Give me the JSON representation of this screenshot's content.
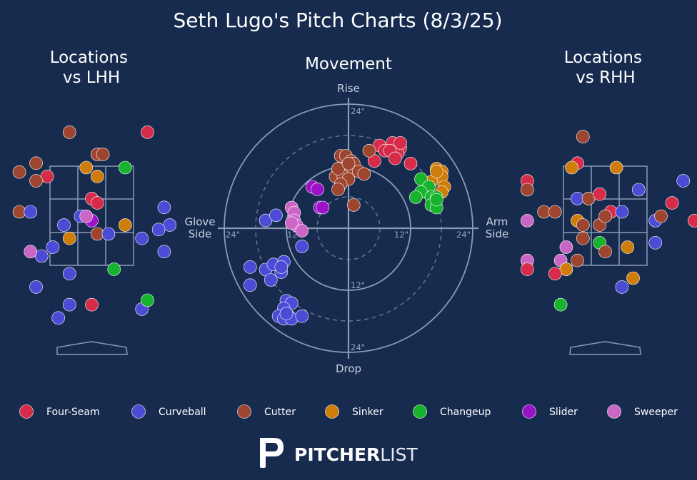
{
  "title": "Seth Lugo's Pitch Charts (8/3/25)",
  "colors": {
    "background": "#162b4e",
    "Four-Seam": "#d62c4a",
    "Curveball": "#4b4bd6",
    "Cutter": "#9e4530",
    "Sinker": "#cf7d0a",
    "Changeup": "#17b32c",
    "Slider": "#9b12c7",
    "Sweeper": "#cc66c6"
  },
  "chart_data": [
    {
      "type": "scatter",
      "title": "Locations\nvs LHH",
      "grid": "strike-zone-3x3",
      "points": [
        {
          "pitch": "Four-Seam",
          "x": 1.0,
          "y": 4.3
        },
        {
          "pitch": "Four-Seam",
          "x": -0.8,
          "y": 3.3
        },
        {
          "pitch": "Four-Seam",
          "x": 0.0,
          "y": 2.8
        },
        {
          "pitch": "Four-Seam",
          "x": 0.1,
          "y": 2.7
        },
        {
          "pitch": "Four-Seam",
          "x": 0.0,
          "y": 0.4
        },
        {
          "pitch": "Cutter",
          "x": -0.4,
          "y": 4.3
        },
        {
          "pitch": "Cutter",
          "x": 0.1,
          "y": 3.8
        },
        {
          "pitch": "Cutter",
          "x": 0.2,
          "y": 3.8
        },
        {
          "pitch": "Cutter",
          "x": -1.0,
          "y": 3.6
        },
        {
          "pitch": "Cutter",
          "x": -1.3,
          "y": 3.4
        },
        {
          "pitch": "Cutter",
          "x": -1.0,
          "y": 3.2
        },
        {
          "pitch": "Cutter",
          "x": -1.3,
          "y": 2.5
        },
        {
          "pitch": "Cutter",
          "x": 0.1,
          "y": 2.0
        },
        {
          "pitch": "Curveball",
          "x": -1.1,
          "y": 2.5
        },
        {
          "pitch": "Curveball",
          "x": 1.3,
          "y": 2.6
        },
        {
          "pitch": "Curveball",
          "x": -0.5,
          "y": 2.2
        },
        {
          "pitch": "Curveball",
          "x": -0.2,
          "y": 2.4
        },
        {
          "pitch": "Curveball",
          "x": 1.4,
          "y": 2.2
        },
        {
          "pitch": "Curveball",
          "x": 1.2,
          "y": 2.1
        },
        {
          "pitch": "Curveball",
          "x": 0.3,
          "y": 2.0
        },
        {
          "pitch": "Curveball",
          "x": 0.9,
          "y": 1.9
        },
        {
          "pitch": "Curveball",
          "x": -0.7,
          "y": 1.7
        },
        {
          "pitch": "Curveball",
          "x": -0.9,
          "y": 1.5
        },
        {
          "pitch": "Curveball",
          "x": 1.3,
          "y": 1.6
        },
        {
          "pitch": "Curveball",
          "x": -0.4,
          "y": 1.1
        },
        {
          "pitch": "Curveball",
          "x": -1.0,
          "y": 0.8
        },
        {
          "pitch": "Curveball",
          "x": -0.4,
          "y": 0.4
        },
        {
          "pitch": "Curveball",
          "x": 0.9,
          "y": 0.3
        },
        {
          "pitch": "Curveball",
          "x": -0.6,
          "y": 0.1
        },
        {
          "pitch": "Sinker",
          "x": -0.1,
          "y": 3.5
        },
        {
          "pitch": "Sinker",
          "x": 0.1,
          "y": 3.3
        },
        {
          "pitch": "Sinker",
          "x": 0.6,
          "y": 2.2
        },
        {
          "pitch": "Sinker",
          "x": -0.4,
          "y": 1.9
        },
        {
          "pitch": "Changeup",
          "x": 0.6,
          "y": 3.5
        },
        {
          "pitch": "Changeup",
          "x": 0.4,
          "y": 1.2
        },
        {
          "pitch": "Changeup",
          "x": 1.0,
          "y": 0.5
        },
        {
          "pitch": "Slider",
          "x": 0.0,
          "y": 2.3
        },
        {
          "pitch": "Sweeper",
          "x": -0.1,
          "y": 2.4
        },
        {
          "pitch": "Sweeper",
          "x": -1.1,
          "y": 1.6
        }
      ]
    },
    {
      "type": "scatter",
      "title": "Movement",
      "polar": true,
      "xlim": [
        -24,
        24
      ],
      "ylim": [
        -24,
        24
      ],
      "rings": [
        "12\"",
        "24\""
      ],
      "axis_labels": {
        "top": "Rise",
        "bottom": "Drop",
        "left": "Glove\nSide",
        "right": "Arm\nSide"
      },
      "tick_labels": {
        "left": "24\"",
        "left_inner": "12\"",
        "right_inner": "12\"",
        "right": "24\"",
        "top": "24\"",
        "bottom_inner": "12\"",
        "bottom": "24\""
      },
      "points": [
        {
          "pitch": "Four-Seam",
          "x": 6.0,
          "y": 16.0
        },
        {
          "pitch": "Four-Seam",
          "x": 8.5,
          "y": 16.5
        },
        {
          "pitch": "Four-Seam",
          "x": 10.0,
          "y": 15.5
        },
        {
          "pitch": "Four-Seam",
          "x": 9.5,
          "y": 14.5
        },
        {
          "pitch": "Four-Seam",
          "x": 7.0,
          "y": 15.0
        },
        {
          "pitch": "Four-Seam",
          "x": 8.0,
          "y": 15.0
        },
        {
          "pitch": "Four-Seam",
          "x": 9.0,
          "y": 13.5
        },
        {
          "pitch": "Four-Seam",
          "x": 5.0,
          "y": 13.0
        },
        {
          "pitch": "Four-Seam",
          "x": 12.0,
          "y": 12.5
        },
        {
          "pitch": "Four-Seam",
          "x": 10.0,
          "y": 16.5
        },
        {
          "pitch": "Cutter",
          "x": -1.5,
          "y": 14.0
        },
        {
          "pitch": "Cutter",
          "x": -0.5,
          "y": 14.0
        },
        {
          "pitch": "Cutter",
          "x": 0.5,
          "y": 13.0
        },
        {
          "pitch": "Cutter",
          "x": 1.0,
          "y": 12.5
        },
        {
          "pitch": "Cutter",
          "x": -2.0,
          "y": 11.0
        },
        {
          "pitch": "Cutter",
          "x": -1.0,
          "y": 11.5
        },
        {
          "pitch": "Cutter",
          "x": 0.0,
          "y": 11.0
        },
        {
          "pitch": "Cutter",
          "x": 2.0,
          "y": 11.0
        },
        {
          "pitch": "Cutter",
          "x": 3.0,
          "y": 10.5
        },
        {
          "pitch": "Cutter",
          "x": -2.5,
          "y": 10.0
        },
        {
          "pitch": "Cutter",
          "x": -1.0,
          "y": 10.0
        },
        {
          "pitch": "Cutter",
          "x": 0.0,
          "y": 9.5
        },
        {
          "pitch": "Cutter",
          "x": -1.5,
          "y": 8.5
        },
        {
          "pitch": "Cutter",
          "x": -2.0,
          "y": 7.5
        },
        {
          "pitch": "Cutter",
          "x": 1.0,
          "y": 4.5
        },
        {
          "pitch": "Cutter",
          "x": 4.0,
          "y": 15.0
        },
        {
          "pitch": "Cutter",
          "x": -2.0,
          "y": 11.5
        },
        {
          "pitch": "Cutter",
          "x": 0.0,
          "y": 12.5
        },
        {
          "pitch": "Sinker",
          "x": 17.0,
          "y": 11.5
        },
        {
          "pitch": "Sinker",
          "x": 18.0,
          "y": 11.0
        },
        {
          "pitch": "Sinker",
          "x": 18.0,
          "y": 10.0
        },
        {
          "pitch": "Sinker",
          "x": 16.0,
          "y": 9.0
        },
        {
          "pitch": "Sinker",
          "x": 18.5,
          "y": 8.0
        },
        {
          "pitch": "Sinker",
          "x": 15.0,
          "y": 7.0
        },
        {
          "pitch": "Sinker",
          "x": 18.0,
          "y": 7.0
        },
        {
          "pitch": "Sinker",
          "x": 17.0,
          "y": 11.0
        },
        {
          "pitch": "Changeup",
          "x": 14.0,
          "y": 9.5
        },
        {
          "pitch": "Changeup",
          "x": 15.5,
          "y": 8.0
        },
        {
          "pitch": "Changeup",
          "x": 14.0,
          "y": 7.0
        },
        {
          "pitch": "Changeup",
          "x": 13.0,
          "y": 6.0
        },
        {
          "pitch": "Changeup",
          "x": 16.0,
          "y": 6.0
        },
        {
          "pitch": "Changeup",
          "x": 17.0,
          "y": 6.0
        },
        {
          "pitch": "Changeup",
          "x": 16.0,
          "y": 4.5
        },
        {
          "pitch": "Changeup",
          "x": 17.0,
          "y": 4.0
        },
        {
          "pitch": "Changeup",
          "x": 17.0,
          "y": 5.5
        },
        {
          "pitch": "Slider",
          "x": -7.0,
          "y": 8.0
        },
        {
          "pitch": "Slider",
          "x": -6.0,
          "y": 7.5
        },
        {
          "pitch": "Slider",
          "x": -5.5,
          "y": 4.0
        },
        {
          "pitch": "Slider",
          "x": -5.0,
          "y": 4.0
        },
        {
          "pitch": "Sweeper",
          "x": -11.0,
          "y": 4.0
        },
        {
          "pitch": "Sweeper",
          "x": -10.5,
          "y": 3.0
        },
        {
          "pitch": "Sweeper",
          "x": -10.5,
          "y": 1.5
        },
        {
          "pitch": "Sweeper",
          "x": -10.0,
          "y": 0.5
        },
        {
          "pitch": "Sweeper",
          "x": -9.0,
          "y": -0.5
        },
        {
          "pitch": "Sweeper",
          "x": -11.0,
          "y": 1.0
        },
        {
          "pitch": "Curveball",
          "x": -16.0,
          "y": 1.5
        },
        {
          "pitch": "Curveball",
          "x": -14.0,
          "y": 2.5
        },
        {
          "pitch": "Curveball",
          "x": -9.0,
          "y": -3.5
        },
        {
          "pitch": "Curveball",
          "x": -19.0,
          "y": -7.5
        },
        {
          "pitch": "Curveball",
          "x": -16.0,
          "y": -8.0
        },
        {
          "pitch": "Curveball",
          "x": -14.5,
          "y": -7.0
        },
        {
          "pitch": "Curveball",
          "x": -12.5,
          "y": -6.5
        },
        {
          "pitch": "Curveball",
          "x": -13.0,
          "y": -8.5
        },
        {
          "pitch": "Curveball",
          "x": -13.0,
          "y": -7.5
        },
        {
          "pitch": "Curveball",
          "x": -15.0,
          "y": -10.0
        },
        {
          "pitch": "Curveball",
          "x": -19.0,
          "y": -11.0
        },
        {
          "pitch": "Curveball",
          "x": -12.0,
          "y": -14.0
        },
        {
          "pitch": "Curveball",
          "x": -11.0,
          "y": -14.5
        },
        {
          "pitch": "Curveball",
          "x": -12.5,
          "y": -15.5
        },
        {
          "pitch": "Curveball",
          "x": -11.5,
          "y": -17.0
        },
        {
          "pitch": "Curveball",
          "x": -13.5,
          "y": -17.0
        },
        {
          "pitch": "Curveball",
          "x": -12.5,
          "y": -17.5
        },
        {
          "pitch": "Curveball",
          "x": -11.0,
          "y": -17.5
        },
        {
          "pitch": "Curveball",
          "x": -9.0,
          "y": -17.0
        },
        {
          "pitch": "Curveball",
          "x": -12.0,
          "y": -16.5
        }
      ]
    },
    {
      "type": "scatter",
      "title": "Locations\nvs RHH",
      "grid": "strike-zone-3x3",
      "points": [
        {
          "pitch": "Cutter",
          "x": -0.4,
          "y": 4.2
        },
        {
          "pitch": "Four-Seam",
          "x": -0.5,
          "y": 3.6
        },
        {
          "pitch": "Sinker",
          "x": -0.6,
          "y": 3.5
        },
        {
          "pitch": "Sinker",
          "x": 0.2,
          "y": 3.5
        },
        {
          "pitch": "Four-Seam",
          "x": -1.4,
          "y": 3.2
        },
        {
          "pitch": "Curveball",
          "x": 0.6,
          "y": 3.0
        },
        {
          "pitch": "Curveball",
          "x": 1.4,
          "y": 3.2
        },
        {
          "pitch": "Curveball",
          "x": 2.7,
          "y": 3.2
        },
        {
          "pitch": "Cutter",
          "x": -1.4,
          "y": 3.0
        },
        {
          "pitch": "Curveball",
          "x": -0.5,
          "y": 2.8
        },
        {
          "pitch": "Cutter",
          "x": -0.3,
          "y": 2.8
        },
        {
          "pitch": "Four-Seam",
          "x": -0.1,
          "y": 2.9
        },
        {
          "pitch": "Four-Seam",
          "x": 1.2,
          "y": 2.7
        },
        {
          "pitch": "Cutter",
          "x": -1.1,
          "y": 2.5
        },
        {
          "pitch": "Cutter",
          "x": -0.9,
          "y": 2.5
        },
        {
          "pitch": "Sweeper",
          "x": -1.4,
          "y": 2.3
        },
        {
          "pitch": "Sinker",
          "x": -0.5,
          "y": 2.3
        },
        {
          "pitch": "Cutter",
          "x": -0.4,
          "y": 2.2
        },
        {
          "pitch": "Cutter",
          "x": -0.1,
          "y": 2.2
        },
        {
          "pitch": "Four-Seam",
          "x": 0.1,
          "y": 2.5
        },
        {
          "pitch": "Curveball",
          "x": 0.3,
          "y": 2.5
        },
        {
          "pitch": "Cutter",
          "x": 0.0,
          "y": 2.4
        },
        {
          "pitch": "Curveball",
          "x": 0.9,
          "y": 2.3
        },
        {
          "pitch": "Cutter",
          "x": 1.0,
          "y": 2.4
        },
        {
          "pitch": "Four-Seam",
          "x": 1.6,
          "y": 2.3
        },
        {
          "pitch": "Cutter",
          "x": -0.4,
          "y": 1.9
        },
        {
          "pitch": "Changeup",
          "x": -0.1,
          "y": 1.8
        },
        {
          "pitch": "Cutter",
          "x": 0.0,
          "y": 1.6
        },
        {
          "pitch": "Sinker",
          "x": 0.4,
          "y": 1.7
        },
        {
          "pitch": "Curveball",
          "x": 0.9,
          "y": 1.8
        },
        {
          "pitch": "Sweeper",
          "x": -0.7,
          "y": 1.7
        },
        {
          "pitch": "Sweeper",
          "x": -1.4,
          "y": 1.4
        },
        {
          "pitch": "Sweeper",
          "x": -0.8,
          "y": 1.4
        },
        {
          "pitch": "Cutter",
          "x": -0.5,
          "y": 1.4
        },
        {
          "pitch": "Changeup",
          "x": -0.7,
          "y": 1.2
        },
        {
          "pitch": "Sinker",
          "x": -0.7,
          "y": 1.2
        },
        {
          "pitch": "Four-Seam",
          "x": -1.4,
          "y": 1.2
        },
        {
          "pitch": "Four-Seam",
          "x": -0.9,
          "y": 1.1
        },
        {
          "pitch": "Sinker",
          "x": 0.5,
          "y": 1.0
        },
        {
          "pitch": "Curveball",
          "x": 0.3,
          "y": 0.8
        },
        {
          "pitch": "Changeup",
          "x": -0.8,
          "y": 0.4
        }
      ]
    }
  ],
  "legend": [
    {
      "label": "Four-Seam"
    },
    {
      "label": "Curveball"
    },
    {
      "label": "Cutter"
    },
    {
      "label": "Sinker"
    },
    {
      "label": "Changeup"
    },
    {
      "label": "Slider"
    },
    {
      "label": "Sweeper"
    }
  ],
  "brand": {
    "bold": "PITCHER",
    "light": "LIST"
  }
}
